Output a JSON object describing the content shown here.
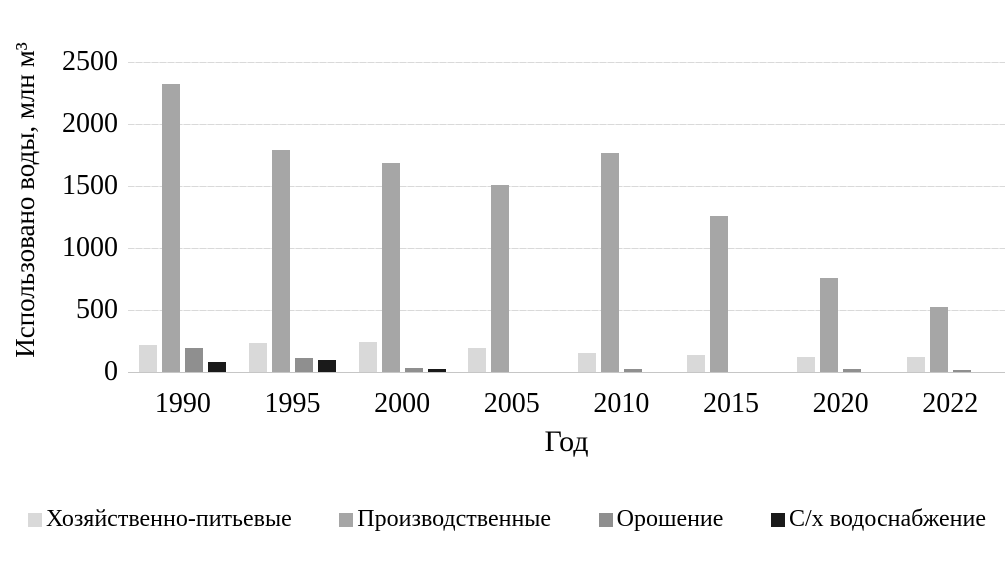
{
  "chart_data": {
    "type": "bar",
    "title": "",
    "ylabel": "Использовано воды, млн м³",
    "xlabel": "Год",
    "categories": [
      "1990",
      "1995",
      "2000",
      "2005",
      "2010",
      "2015",
      "2020",
      "2022"
    ],
    "series": [
      {
        "name": "Хозяйственно-питьевые",
        "color": "#d9d9d9",
        "values": [
          215,
          230,
          245,
          195,
          150,
          135,
          120,
          120
        ]
      },
      {
        "name": "Производственные",
        "color": "#a6a6a6",
        "values": [
          2320,
          1790,
          1685,
          1505,
          1770,
          1255,
          760,
          525
        ]
      },
      {
        "name": "Орошение",
        "color": "#8f8f8f",
        "values": [
          195,
          115,
          30,
          0,
          25,
          0,
          25,
          20
        ]
      },
      {
        "name": "С/х водоснабжение",
        "color": "#1a1a1a",
        "values": [
          80,
          95,
          25,
          0,
          0,
          0,
          0,
          0
        ]
      }
    ],
    "ylim": [
      0,
      2500
    ],
    "yticks": [
      0,
      500,
      1000,
      1500,
      2000,
      2500
    ],
    "grid": true,
    "legend_position": "bottom",
    "colors": {
      "grid": "#d9d9d9",
      "axis": "#c6c6c6",
      "text": "#000000",
      "background": "#ffffff"
    }
  }
}
